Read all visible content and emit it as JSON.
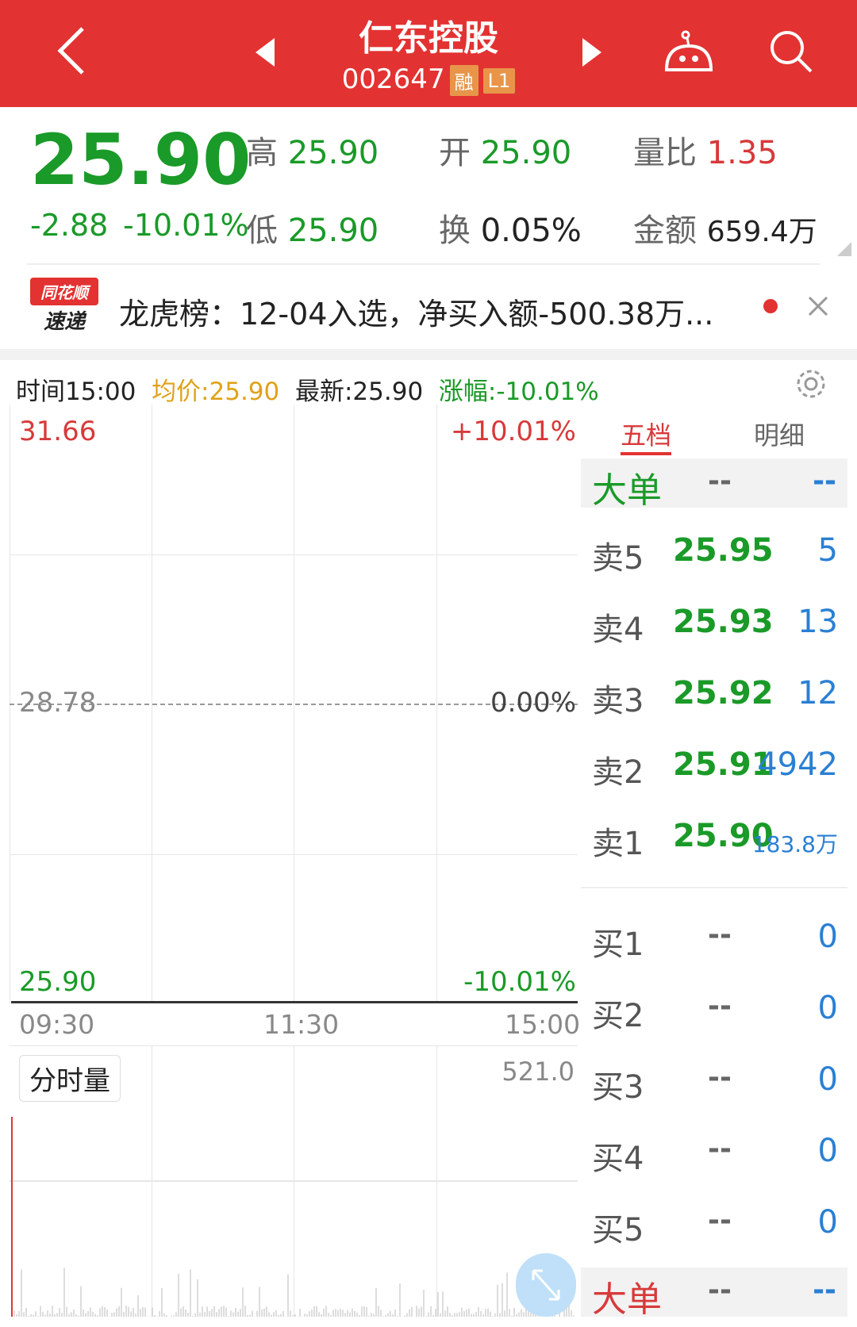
{
  "header": {
    "title": "仁东控股",
    "code": "002647",
    "tags": [
      "融",
      "L1"
    ],
    "icons": [
      "back-icon",
      "prev-stock-icon",
      "next-stock-icon",
      "robot-icon",
      "search-icon"
    ]
  },
  "quote": {
    "price": "25.90",
    "change": "-2.88",
    "change_pct": "-10.01%",
    "high_label": "高",
    "high": "25.90",
    "open_label": "开",
    "open": "25.90",
    "vol_ratio_label": "量比",
    "vol_ratio": "1.35",
    "low_label": "低",
    "low": "25.90",
    "turnover_label": "换",
    "turnover": "0.05%",
    "amount_label": "金额",
    "amount": "659.4万"
  },
  "news": {
    "logo_top": "同花顺",
    "logo_bottom": "速递",
    "text": "龙虎榜：12-04入选，净买入额-500.38万..."
  },
  "info_bar": {
    "time": "时间15:00",
    "avg": "均价:25.90",
    "latest": "最新:25.90",
    "change": "涨幅:-10.01%"
  },
  "chart": {
    "y_top": "31.66",
    "y_mid": "28.78",
    "y_bottom": "25.90",
    "pct_top": "+10.01%",
    "pct_mid": "0.00%",
    "pct_bottom": "-10.01%",
    "x_labels": [
      "09:30",
      "11:30",
      "15:00"
    ],
    "volume_label": "分时量",
    "volume_max": "521.0"
  },
  "orderbook": {
    "tabs": [
      "五档",
      "明细"
    ],
    "active_tab": 0,
    "big_order_label": "大单",
    "big_dash1": "--",
    "big_dash2": "--",
    "asks": [
      {
        "label": "卖5",
        "price": "25.95",
        "vol": "5"
      },
      {
        "label": "卖4",
        "price": "25.93",
        "vol": "13"
      },
      {
        "label": "卖3",
        "price": "25.92",
        "vol": "12"
      },
      {
        "label": "卖2",
        "price": "25.91",
        "vol": "4942"
      },
      {
        "label": "卖1",
        "price": "25.90",
        "vol": "183.8万"
      }
    ],
    "bids": [
      {
        "label": "买1",
        "price": "--",
        "vol": "0"
      },
      {
        "label": "买2",
        "price": "--",
        "vol": "0"
      },
      {
        "label": "买3",
        "price": "--",
        "vol": "0"
      },
      {
        "label": "买4",
        "price": "--",
        "vol": "0"
      },
      {
        "label": "买5",
        "price": "--",
        "vol": "0"
      }
    ]
  }
}
